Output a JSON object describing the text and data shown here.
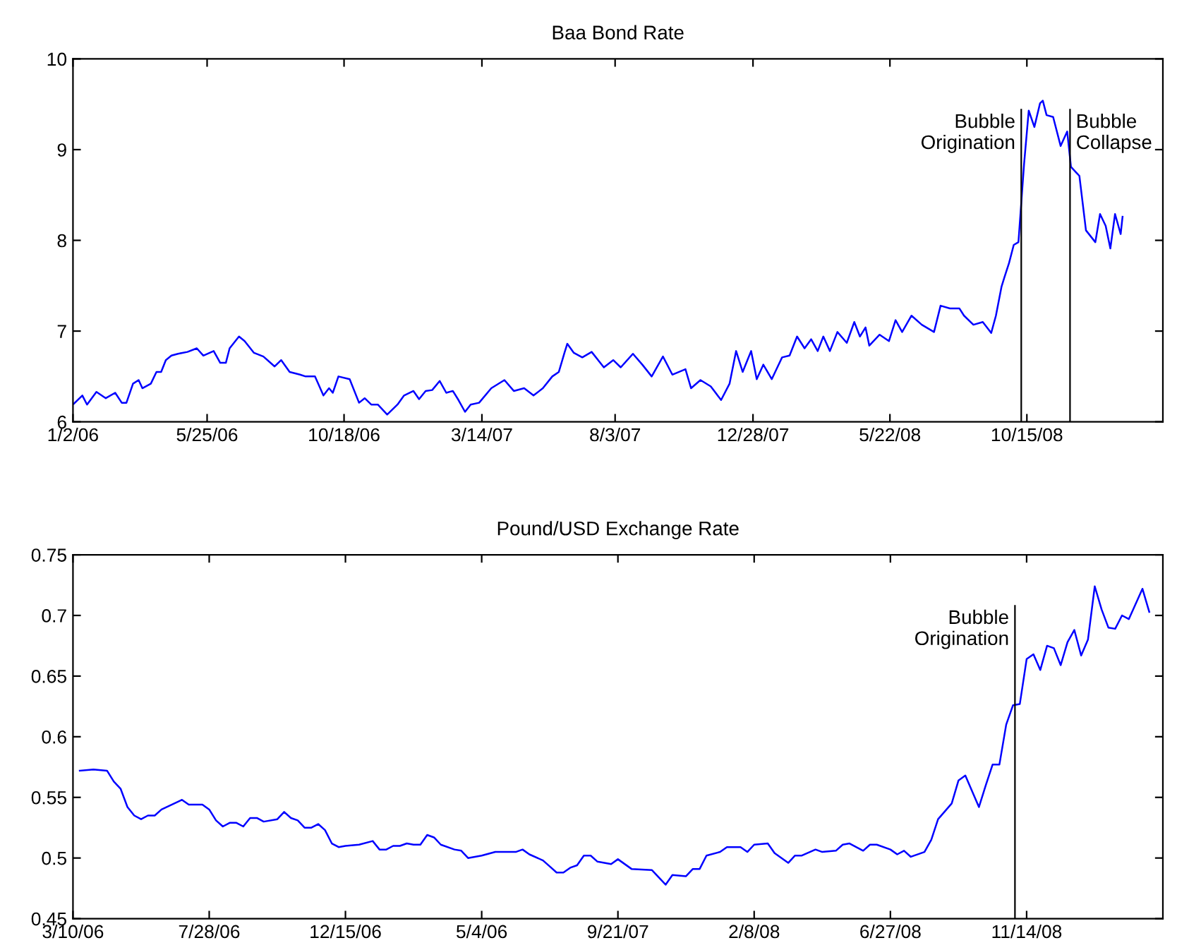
{
  "chart_data": [
    {
      "type": "line",
      "title": "Baa Bond Rate",
      "xlim": [
        "2006-01-02",
        "2009-03-09"
      ],
      "ylim": [
        6,
        10
      ],
      "yticks": [
        6,
        7,
        8,
        9,
        10
      ],
      "xticks": [
        {
          "value": "2006-01-02",
          "label": "1/2/06"
        },
        {
          "value": "2006-05-25",
          "label": "5/25/06"
        },
        {
          "value": "2006-10-18",
          "label": "10/18/06"
        },
        {
          "value": "2007-03-14",
          "label": "3/14/07"
        },
        {
          "value": "2007-08-03",
          "label": "8/3/07"
        },
        {
          "value": "2007-12-28",
          "label": "12/28/07"
        },
        {
          "value": "2008-05-22",
          "label": "5/22/08"
        },
        {
          "value": "2008-10-15",
          "label": "10/15/08"
        }
      ],
      "grid": false,
      "legend": false,
      "series": [
        {
          "color": "#0000ff",
          "x": [
            "2006-01-03",
            "2006-01-12",
            "2006-01-17",
            "2006-01-27",
            "2006-02-06",
            "2006-02-16",
            "2006-02-23",
            "2006-02-28",
            "2006-03-07",
            "2006-03-13",
            "2006-03-17",
            "2006-03-26",
            "2006-04-01",
            "2006-04-06",
            "2006-04-11",
            "2006-04-17",
            "2006-04-24",
            "2006-05-04",
            "2006-05-14",
            "2006-05-21",
            "2006-06-01",
            "2006-06-08",
            "2006-06-14",
            "2006-06-18",
            "2006-06-28",
            "2006-07-04",
            "2006-07-14",
            "2006-07-24",
            "2006-08-05",
            "2006-08-12",
            "2006-08-21",
            "2006-09-01",
            "2006-09-07",
            "2006-09-17",
            "2006-09-26",
            "2006-10-02",
            "2006-10-06",
            "2006-10-12",
            "2006-10-24",
            "2006-11-03",
            "2006-11-09",
            "2006-11-16",
            "2006-11-23",
            "2006-12-03",
            "2006-12-14",
            "2006-12-21",
            "2006-12-31",
            "2007-01-06",
            "2007-01-13",
            "2007-01-20",
            "2007-01-28",
            "2007-02-04",
            "2007-02-11",
            "2007-02-17",
            "2007-02-24",
            "2007-03-02",
            "2007-03-11",
            "2007-03-24",
            "2007-04-07",
            "2007-04-17",
            "2007-04-28",
            "2007-05-08",
            "2007-05-18",
            "2007-05-28",
            "2007-06-04",
            "2007-06-10",
            "2007-06-13",
            "2007-06-20",
            "2007-06-29",
            "2007-07-09",
            "2007-07-22",
            "2007-08-01",
            "2007-08-09",
            "2007-08-22",
            "2007-09-01",
            "2007-09-11",
            "2007-09-23",
            "2007-10-03",
            "2007-10-17",
            "2007-10-23",
            "2007-11-02",
            "2007-11-13",
            "2007-11-24",
            "2007-12-03",
            "2007-12-10",
            "2007-12-17",
            "2007-12-26",
            "2008-01-01",
            "2008-01-08",
            "2008-01-17",
            "2008-01-28",
            "2008-02-05",
            "2008-02-13",
            "2008-02-21",
            "2008-02-28",
            "2008-03-06",
            "2008-03-12",
            "2008-03-19",
            "2008-03-27",
            "2008-04-06",
            "2008-04-14",
            "2008-04-20",
            "2008-04-26",
            "2008-04-30",
            "2008-05-11",
            "2008-05-21",
            "2008-05-28",
            "2008-06-04",
            "2008-06-14",
            "2008-06-25",
            "2008-07-08",
            "2008-07-15",
            "2008-07-25",
            "2008-08-04",
            "2008-08-09",
            "2008-08-19",
            "2008-08-29",
            "2008-09-07",
            "2008-09-12",
            "2008-09-18",
            "2008-09-21",
            "2008-09-26",
            "2008-10-01",
            "2008-10-06",
            "2008-10-12",
            "2008-10-17",
            "2008-10-23",
            "2008-10-29",
            "2008-11-01",
            "2008-11-05",
            "2008-11-12",
            "2008-11-20",
            "2008-11-27",
            "2008-12-01",
            "2008-12-10",
            "2008-12-17",
            "2008-12-27",
            "2009-01-01",
            "2009-01-07",
            "2009-01-12",
            "2009-01-17",
            "2009-01-23",
            "2009-01-25"
          ],
          "values": [
            6.2,
            6.29,
            6.19,
            6.33,
            6.26,
            6.32,
            6.21,
            6.21,
            6.42,
            6.46,
            6.37,
            6.42,
            6.55,
            6.55,
            6.68,
            6.73,
            6.75,
            6.77,
            6.81,
            6.73,
            6.78,
            6.65,
            6.65,
            6.81,
            6.94,
            6.89,
            6.76,
            6.72,
            6.61,
            6.68,
            6.55,
            6.52,
            6.5,
            6.5,
            6.29,
            6.37,
            6.32,
            6.5,
            6.47,
            6.21,
            6.26,
            6.19,
            6.19,
            6.08,
            6.19,
            6.29,
            6.34,
            6.25,
            6.34,
            6.35,
            6.45,
            6.32,
            6.34,
            6.24,
            6.11,
            6.19,
            6.21,
            6.37,
            6.46,
            6.34,
            6.37,
            6.29,
            6.37,
            6.5,
            6.55,
            6.76,
            6.86,
            6.76,
            6.71,
            6.77,
            6.6,
            6.68,
            6.6,
            6.75,
            6.63,
            6.5,
            6.72,
            6.52,
            6.58,
            6.37,
            6.46,
            6.39,
            6.24,
            6.42,
            6.78,
            6.55,
            6.78,
            6.47,
            6.63,
            6.47,
            6.71,
            6.73,
            6.94,
            6.81,
            6.91,
            6.78,
            6.94,
            6.78,
            6.99,
            6.87,
            7.1,
            6.94,
            7.04,
            6.84,
            6.96,
            6.89,
            7.12,
            6.99,
            7.17,
            7.07,
            6.99,
            7.28,
            7.25,
            7.25,
            7.17,
            7.07,
            7.1,
            6.98,
            7.17,
            7.49,
            7.59,
            7.75,
            7.95,
            7.98,
            8.84,
            9.43,
            9.25,
            9.51,
            9.54,
            9.38,
            9.36,
            9.04,
            9.2,
            8.81,
            8.71,
            8.11,
            7.98,
            8.29,
            8.16,
            7.91,
            8.29,
            8.07,
            8.26
          ]
        }
      ],
      "ref_lines": [
        {
          "axis": "x",
          "value": "2008-10-09",
          "label": "Bubble\nOrigination",
          "color": "#000000"
        },
        {
          "axis": "x",
          "value": "2008-11-30",
          "label": "Bubble\nCollapse",
          "color": "#000000"
        }
      ]
    },
    {
      "type": "line",
      "title": "Pound/USD Exchange Rate",
      "xlim": [
        "2006-03-10",
        "2009-04-03"
      ],
      "ylim": [
        0.45,
        0.75
      ],
      "yticks": [
        0.45,
        0.5,
        0.55,
        0.6,
        0.65,
        0.7,
        0.75
      ],
      "xticks": [
        {
          "value": "2006-03-10",
          "label": "3/10/06"
        },
        {
          "value": "2006-07-28",
          "label": "7/28/06"
        },
        {
          "value": "2006-12-15",
          "label": "12/15/06"
        },
        {
          "value": "2007-05-04",
          "label": "5/4/06"
        },
        {
          "value": "2007-09-21",
          "label": "9/21/07"
        },
        {
          "value": "2008-02-08",
          "label": "2/8/08"
        },
        {
          "value": "2008-06-27",
          "label": "6/27/08"
        },
        {
          "value": "2008-11-14",
          "label": "11/14/08"
        }
      ],
      "grid": false,
      "legend": false,
      "series": [
        {
          "color": "#0000ff",
          "x": [
            "2006-03-17",
            "2006-03-31",
            "2006-04-14",
            "2006-04-21",
            "2006-04-28",
            "2006-05-05",
            "2006-05-12",
            "2006-05-19",
            "2006-05-26",
            "2006-06-02",
            "2006-06-09",
            "2006-06-30",
            "2006-07-07",
            "2006-07-21",
            "2006-07-28",
            "2006-08-04",
            "2006-08-11",
            "2006-08-18",
            "2006-08-25",
            "2006-09-01",
            "2006-09-08",
            "2006-09-15",
            "2006-09-22",
            "2006-10-06",
            "2006-10-13",
            "2006-10-20",
            "2006-10-27",
            "2006-11-03",
            "2006-11-10",
            "2006-11-17",
            "2006-11-24",
            "2006-12-01",
            "2006-12-08",
            "2006-12-15",
            "2006-12-29",
            "2007-01-12",
            "2007-01-19",
            "2007-01-26",
            "2007-02-02",
            "2007-02-09",
            "2007-02-16",
            "2007-02-23",
            "2007-03-02",
            "2007-03-09",
            "2007-03-16",
            "2007-03-23",
            "2007-04-06",
            "2007-04-13",
            "2007-04-20",
            "2007-05-04",
            "2007-05-18",
            "2007-06-08",
            "2007-06-15",
            "2007-06-22",
            "2007-07-06",
            "2007-07-13",
            "2007-07-20",
            "2007-07-27",
            "2007-08-03",
            "2007-08-10",
            "2007-08-17",
            "2007-08-24",
            "2007-08-31",
            "2007-09-14",
            "2007-09-21",
            "2007-10-05",
            "2007-10-26",
            "2007-11-09",
            "2007-11-16",
            "2007-11-30",
            "2007-12-07",
            "2007-12-14",
            "2007-12-21",
            "2008-01-04",
            "2008-01-11",
            "2008-01-25",
            "2008-02-01",
            "2008-02-08",
            "2008-02-22",
            "2008-02-29",
            "2008-03-14",
            "2008-03-21",
            "2008-03-28",
            "2008-04-11",
            "2008-04-18",
            "2008-05-02",
            "2008-05-09",
            "2008-05-16",
            "2008-05-30",
            "2008-06-06",
            "2008-06-13",
            "2008-06-27",
            "2008-07-04",
            "2008-07-11",
            "2008-07-18",
            "2008-08-01",
            "2008-08-08",
            "2008-08-15",
            "2008-08-29",
            "2008-09-05",
            "2008-09-12",
            "2008-09-26",
            "2008-10-03",
            "2008-10-10",
            "2008-10-17",
            "2008-10-24",
            "2008-10-31",
            "2008-11-07",
            "2008-11-14",
            "2008-11-21",
            "2008-11-28",
            "2008-12-05",
            "2008-12-12",
            "2008-12-19",
            "2008-12-26",
            "2009-01-02",
            "2009-01-09",
            "2009-01-16",
            "2009-01-23",
            "2009-01-30",
            "2009-02-06",
            "2009-02-13",
            "2009-02-20",
            "2009-02-27",
            "2009-03-13",
            "2009-03-20"
          ],
          "values": [
            0.572,
            0.573,
            0.572,
            0.563,
            0.557,
            0.542,
            0.535,
            0.532,
            0.535,
            0.535,
            0.54,
            0.548,
            0.544,
            0.544,
            0.54,
            0.531,
            0.526,
            0.529,
            0.529,
            0.526,
            0.533,
            0.533,
            0.53,
            0.532,
            0.538,
            0.533,
            0.531,
            0.525,
            0.525,
            0.528,
            0.523,
            0.512,
            0.509,
            0.51,
            0.511,
            0.514,
            0.507,
            0.507,
            0.51,
            0.51,
            0.512,
            0.511,
            0.511,
            0.519,
            0.517,
            0.511,
            0.507,
            0.506,
            0.5,
            0.502,
            0.505,
            0.505,
            0.507,
            0.503,
            0.498,
            0.493,
            0.488,
            0.488,
            0.492,
            0.494,
            0.502,
            0.502,
            0.497,
            0.495,
            0.499,
            0.491,
            0.49,
            0.478,
            0.486,
            0.485,
            0.491,
            0.491,
            0.502,
            0.505,
            0.509,
            0.509,
            0.505,
            0.511,
            0.512,
            0.504,
            0.496,
            0.502,
            0.502,
            0.507,
            0.505,
            0.506,
            0.511,
            0.512,
            0.506,
            0.511,
            0.511,
            0.507,
            0.503,
            0.506,
            0.501,
            0.505,
            0.515,
            0.532,
            0.545,
            0.564,
            0.568,
            0.542,
            0.56,
            0.577,
            0.577,
            0.61,
            0.626,
            0.627,
            0.664,
            0.668,
            0.655,
            0.675,
            0.673,
            0.659,
            0.678,
            0.688,
            0.667,
            0.68,
            0.724,
            0.705,
            0.69,
            0.689,
            0.7,
            0.697,
            0.722,
            0.703
          ]
        }
      ],
      "ref_lines": [
        {
          "axis": "x",
          "value": "2008-11-02",
          "label": "Bubble\nOrigination",
          "color": "#000000"
        }
      ]
    }
  ]
}
